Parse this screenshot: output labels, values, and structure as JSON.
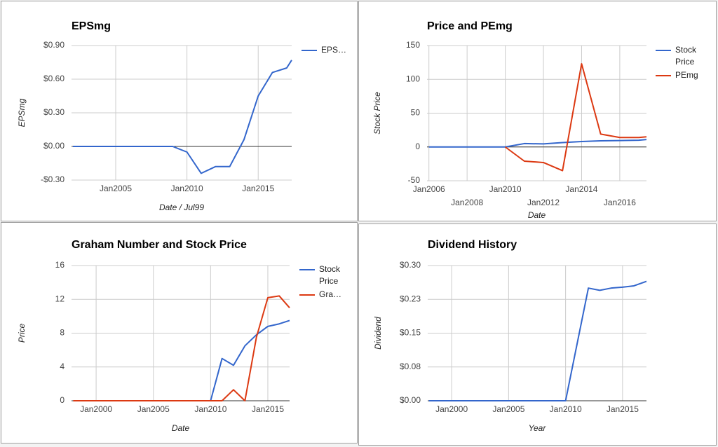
{
  "chart_data": [
    {
      "type": "line",
      "title": "EPSmg",
      "y_label": "EPSmg",
      "x_label": "Date / Jul99",
      "x": [
        2002,
        2003,
        2004,
        2005,
        2006,
        2007,
        2008,
        2009,
        2010,
        2011,
        2012,
        2013,
        2014,
        2015,
        2016,
        2017,
        2017.35
      ],
      "series": [
        {
          "name": "EPS…",
          "color": "#3366cc",
          "values": [
            0,
            0,
            0,
            0,
            0,
            0,
            0,
            0,
            -0.05,
            -0.24,
            -0.18,
            -0.18,
            0.06,
            0.45,
            0.66,
            0.7,
            0.77
          ]
        }
      ],
      "xlim": [
        2001.9,
        2017.35
      ],
      "xticks": [
        {
          "value": 2005,
          "label": "Jan2005"
        },
        {
          "value": 2010,
          "label": "Jan2010"
        },
        {
          "value": 2015,
          "label": "Jan2015"
        }
      ],
      "ylim": [
        -0.3,
        0.9
      ],
      "yticks": [
        {
          "value": -0.3,
          "label": "-$0.30"
        },
        {
          "value": 0,
          "label": "$0.00"
        },
        {
          "value": 0.3,
          "label": "$0.30"
        },
        {
          "value": 0.6,
          "label": "$0.60"
        },
        {
          "value": 0.9,
          "label": "$0.90"
        }
      ],
      "grid": true,
      "legend": "right"
    },
    {
      "type": "line",
      "title": "Price and PEmg",
      "y_label": "Stock Price",
      "x_label": "Date",
      "x": [
        2006,
        2007,
        2008,
        2009,
        2010,
        2011,
        2012,
        2013,
        2014,
        2015,
        2016,
        2017,
        2017.4
      ],
      "series": [
        {
          "name": "Stock Price",
          "color": "#3366cc",
          "values": [
            0,
            0,
            0,
            0,
            0,
            5,
            4.5,
            6.5,
            8,
            9,
            9.5,
            10,
            11
          ]
        },
        {
          "name": "PEmg",
          "color": "#dc3912",
          "values": [
            null,
            null,
            null,
            null,
            0,
            -21,
            -23,
            -35,
            123,
            19,
            14,
            14,
            15
          ]
        }
      ],
      "xlim": [
        2005.9,
        2017.4
      ],
      "xticks": [
        {
          "value": 2006,
          "label": "Jan2006"
        },
        {
          "value": 2008,
          "label": "Jan2008"
        },
        {
          "value": 2010,
          "label": "Jan2010"
        },
        {
          "value": 2012,
          "label": "Jan2012"
        },
        {
          "value": 2014,
          "label": "Jan2014"
        },
        {
          "value": 2016,
          "label": "Jan2016"
        }
      ],
      "ylim": [
        -50,
        150
      ],
      "yticks": [
        -50,
        0,
        50,
        100,
        150
      ],
      "grid": true,
      "legend": "right"
    },
    {
      "type": "line",
      "title": "Graham Number and Stock Price",
      "y_label": "Price",
      "x_label": "Date",
      "x": [
        1998,
        1999,
        2000,
        2001,
        2002,
        2003,
        2004,
        2005,
        2006,
        2007,
        2008,
        2009,
        2010,
        2011,
        2012,
        2013,
        2014,
        2015,
        2016,
        2016.9
      ],
      "series": [
        {
          "name": "Stock Price",
          "color": "#3366cc",
          "values": [
            0,
            0,
            0,
            0,
            0,
            0,
            0,
            0,
            0,
            0,
            0,
            0,
            0,
            5,
            4.2,
            6.5,
            7.8,
            8.8,
            9.1,
            9.5
          ]
        },
        {
          "name": "Gra…",
          "color": "#dc3912",
          "values": [
            0,
            0,
            0,
            0,
            0,
            0,
            0,
            0,
            0,
            0,
            0,
            0,
            0,
            0,
            1.3,
            0,
            7.5,
            12.2,
            12.4,
            11
          ]
        }
      ],
      "xlim": [
        1997.85,
        2016.9
      ],
      "xticks": [
        {
          "value": 2000,
          "label": "Jan2000"
        },
        {
          "value": 2005,
          "label": "Jan2005"
        },
        {
          "value": 2010,
          "label": "Jan2010"
        },
        {
          "value": 2015,
          "label": "Jan2015"
        }
      ],
      "ylim": [
        0,
        16
      ],
      "yticks": [
        0,
        4,
        8,
        12,
        16
      ],
      "grid": true,
      "legend": "right"
    },
    {
      "type": "line",
      "title": "Dividend History",
      "y_label": "Dividend",
      "x_label": "Year",
      "x": [
        1998,
        1999,
        2000,
        2001,
        2002,
        2003,
        2004,
        2005,
        2006,
        2007,
        2008,
        2009,
        2010,
        2012,
        2013,
        2014,
        2015,
        2016,
        2017.1
      ],
      "series": [
        {
          "color": "#3366cc",
          "values": [
            0,
            0,
            0,
            0,
            0,
            0,
            0,
            0,
            0,
            0,
            0,
            0,
            0,
            0.25,
            0.245,
            0.25,
            0.252,
            0.255,
            0.265
          ]
        }
      ],
      "xlim": [
        1997.9,
        2017.1
      ],
      "xticks": [
        {
          "value": 2000,
          "label": "Jan2000"
        },
        {
          "value": 2005,
          "label": "Jan2005"
        },
        {
          "value": 2010,
          "label": "Jan2010"
        },
        {
          "value": 2015,
          "label": "Jan2015"
        }
      ],
      "ylim": [
        0,
        0.3
      ],
      "yticks": [
        {
          "value": 0,
          "label": "$0.00"
        },
        {
          "value": 0.075,
          "label": "$0.08"
        },
        {
          "value": 0.15,
          "label": "$0.15"
        },
        {
          "value": 0.225,
          "label": "$0.23"
        },
        {
          "value": 0.3,
          "label": "$0.30"
        }
      ],
      "grid": true
    }
  ]
}
